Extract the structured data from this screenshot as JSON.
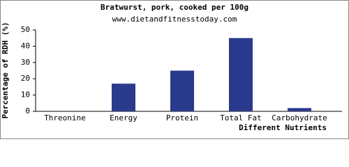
{
  "chart_data": {
    "type": "bar",
    "title": "Bratwurst, pork, cooked per 100g",
    "subtitle": "www.dietandfitnesstoday.com",
    "x_label": "Different Nutrients",
    "y_label": "Percentage of RDH (%)",
    "categories": [
      "Threonine",
      "Energy",
      "Protein",
      "Total Fat",
      "Carbohydrate"
    ],
    "values": [
      0,
      17,
      25,
      45,
      2
    ],
    "color": "#2a3a8c",
    "ylim": [
      0,
      50
    ],
    "yticks": [
      0,
      10,
      20,
      30,
      40,
      50
    ],
    "grid": false
  }
}
